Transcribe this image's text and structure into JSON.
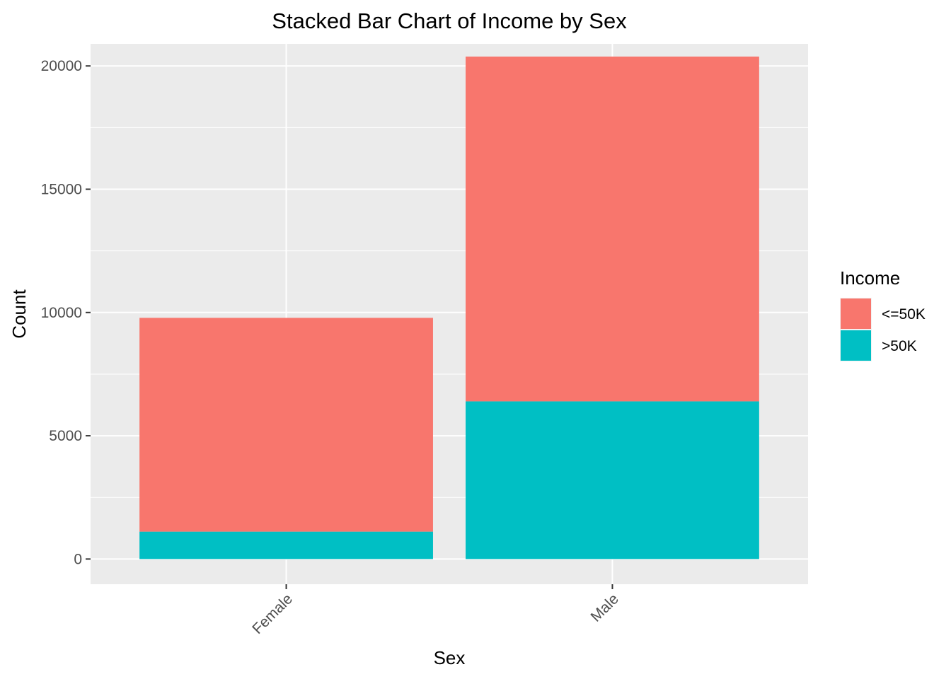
{
  "chart_data": {
    "type": "bar",
    "stacked": true,
    "title": "Stacked Bar Chart of Income by Sex",
    "xlabel": "Sex",
    "ylabel": "Count",
    "categories": [
      "Female",
      "Male"
    ],
    "series": [
      {
        "name": "<=50K",
        "values": [
          8670,
          13984
        ],
        "color": "#F8766D"
      },
      {
        "name": ">50K",
        "values": [
          1112,
          6396
        ],
        "color": "#00BFC4"
      }
    ],
    "ylim": [
      -1022,
      20896
    ],
    "y_ticks": [
      0,
      5000,
      10000,
      15000,
      20000
    ],
    "grid": true,
    "panel_background": "#EBEBEB",
    "grid_color": "#FFFFFF",
    "legend_title": "Income",
    "legend_position": "right"
  }
}
